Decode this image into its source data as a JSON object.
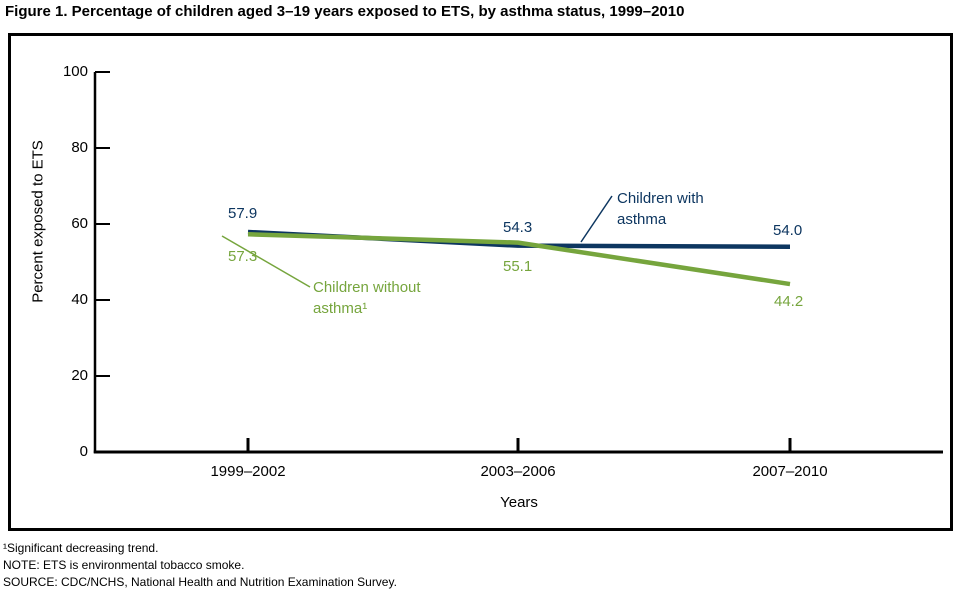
{
  "title": "Figure 1. Percentage of children aged 3–19 years exposed to ETS, by asthma status, 1999–2010",
  "chart_data": {
    "type": "line",
    "categories": [
      "1999–2002",
      "2003–2006",
      "2007–2010"
    ],
    "series": [
      {
        "name": "Children with asthma",
        "values": [
          57.9,
          54.3,
          54.0
        ],
        "color": "#0d3660"
      },
      {
        "name": "Children without asthma¹",
        "values": [
          57.3,
          55.1,
          44.2
        ],
        "color": "#76a53d"
      }
    ],
    "title": "Figure 1. Percentage of children aged 3–19 years exposed to ETS, by asthma status, 1999–2010",
    "xlabel": "Years",
    "ylabel": "Percent exposed to ETS",
    "ylim": [
      0,
      100
    ],
    "yticks": [
      0,
      20,
      40,
      60,
      80,
      100
    ],
    "grid": false,
    "legend_position": "inline-annotations"
  },
  "annotations": {
    "with_asthma_line1": "Children with",
    "with_asthma_line2": "asthma",
    "without_asthma_line1": "Children without",
    "without_asthma_line2": "asthma¹"
  },
  "footnotes": [
    "¹Significant decreasing trend.",
    "NOTE: ETS is environmental tobacco smoke.",
    "SOURCE: CDC/NCHS, National Health and Nutrition Examination Survey."
  ],
  "colors": {
    "with_asthma": "#0d3660",
    "without_asthma": "#76a53d",
    "axis": "#000000"
  }
}
